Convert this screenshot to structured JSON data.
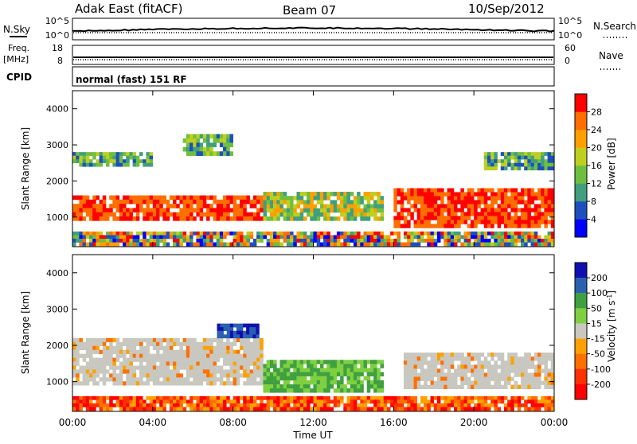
{
  "header": {
    "station": "Adak East (fitACF)",
    "beam": "Beam 07",
    "date": "10/Sep/2012"
  },
  "status_panels": {
    "nsky_label": "N.Sky",
    "nsky_ticks": [
      "10^5",
      "10^0"
    ],
    "nsearch_label": "N.Search",
    "nsearch_ticks": [
      "10^5",
      "10^0"
    ],
    "freq_label": "Freq.",
    "freq_unit": "[MHz]",
    "freq_ticks": [
      "18",
      "8"
    ],
    "nave_label": "Nave",
    "nave_ticks": [
      "60",
      "0"
    ],
    "cpid_label": "CPID",
    "cpid_value": "normal (fast) 151 RF"
  },
  "chart_data": [
    {
      "type": "heatmap",
      "name": "power",
      "ylabel": "Slant Range [km]",
      "xlabel": "",
      "x_range": [
        0,
        24
      ],
      "ylim": [
        180,
        4500
      ],
      "yticks": [
        1000,
        2000,
        3000,
        4000
      ],
      "xticks_hours": [
        0,
        4,
        8,
        12,
        16,
        20,
        24
      ],
      "colorbar": {
        "label": "Power [dB]",
        "levels": [
          "4",
          "8",
          "12",
          "16",
          "20",
          "24",
          "28"
        ],
        "colors": [
          "#0000ff",
          "#1f4fbf",
          "#3f9f7f",
          "#6fbf3f",
          "#bfcf1f",
          "#ff9f00",
          "#ff6f00",
          "#ff0000"
        ]
      },
      "regions": [
        {
          "t0": 0.0,
          "t1": 9.5,
          "r0": 900,
          "r1": 1600,
          "level": "high"
        },
        {
          "t0": 9.5,
          "t1": 15.5,
          "r0": 900,
          "r1": 1700,
          "level": "medium"
        },
        {
          "t0": 16.0,
          "t1": 24.0,
          "r0": 700,
          "r1": 1800,
          "level": "high"
        },
        {
          "t0": 0.0,
          "t1": 4.0,
          "r0": 2400,
          "r1": 2800,
          "level": "low"
        },
        {
          "t0": 5.5,
          "t1": 8.0,
          "r0": 2700,
          "r1": 3300,
          "level": "low"
        },
        {
          "t0": 20.5,
          "t1": 24.0,
          "r0": 2300,
          "r1": 2800,
          "level": "low"
        },
        {
          "t0": 0.0,
          "t1": 24.0,
          "r0": 200,
          "r1": 600,
          "level": "mixed"
        }
      ]
    },
    {
      "type": "heatmap",
      "name": "velocity",
      "ylabel": "Slant Range [km]",
      "xlabel": "Time UT",
      "x_range": [
        0,
        24
      ],
      "ylim": [
        180,
        4500
      ],
      "yticks": [
        1000,
        2000,
        3000,
        4000
      ],
      "xticks": [
        "00:00",
        "04:00",
        "08:00",
        "12:00",
        "16:00",
        "20:00",
        "00:00"
      ],
      "colorbar": {
        "label": "Velocity [m s^-1]",
        "levels": [
          "200",
          "100",
          "50",
          "15",
          "-15",
          "-50",
          "-100",
          "-200"
        ],
        "colors": [
          "#1010b0",
          "#2a60b0",
          "#3fa040",
          "#7fd040",
          "#c8c8c0",
          "#ffa000",
          "#ff7000",
          "#ff3000",
          "#ff0000"
        ]
      },
      "regions": [
        {
          "t0": 0.0,
          "t1": 9.5,
          "r0": 900,
          "r1": 2200,
          "level": "ground"
        },
        {
          "t0": 9.5,
          "t1": 15.5,
          "r0": 700,
          "r1": 1600,
          "level": "positive"
        },
        {
          "t0": 16.5,
          "t1": 24.0,
          "r0": 800,
          "r1": 1800,
          "level": "ground"
        },
        {
          "t0": 7.2,
          "t1": 9.3,
          "r0": 2200,
          "r1": 2600,
          "level": "strong-positive"
        },
        {
          "t0": 0.0,
          "t1": 24.0,
          "r0": 200,
          "r1": 600,
          "level": "negative"
        }
      ]
    }
  ]
}
